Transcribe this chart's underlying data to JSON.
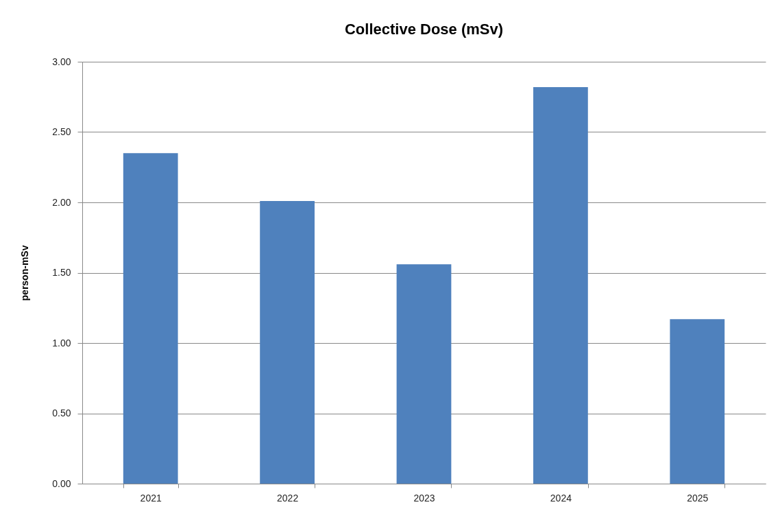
{
  "chart_data": {
    "type": "bar",
    "title": "Collective Dose (mSv)",
    "ylabel": "person-mSv",
    "categories": [
      "2021",
      "2022",
      "2023",
      "2024",
      "2025"
    ],
    "values": [
      2.35,
      2.01,
      1.56,
      2.82,
      1.17
    ],
    "color": "#4f81bd",
    "ylim": [
      0,
      3
    ],
    "yticks": [
      {
        "value": 0,
        "label": "0.00"
      },
      {
        "value": 0.5,
        "label": "0.50"
      },
      {
        "value": 1,
        "label": "1.00"
      },
      {
        "value": 1.5,
        "label": "1.50"
      },
      {
        "value": 2,
        "label": "2.00"
      },
      {
        "value": 2.5,
        "label": "2.50"
      },
      {
        "value": 3,
        "label": "3.00"
      }
    ],
    "grid": "y"
  }
}
